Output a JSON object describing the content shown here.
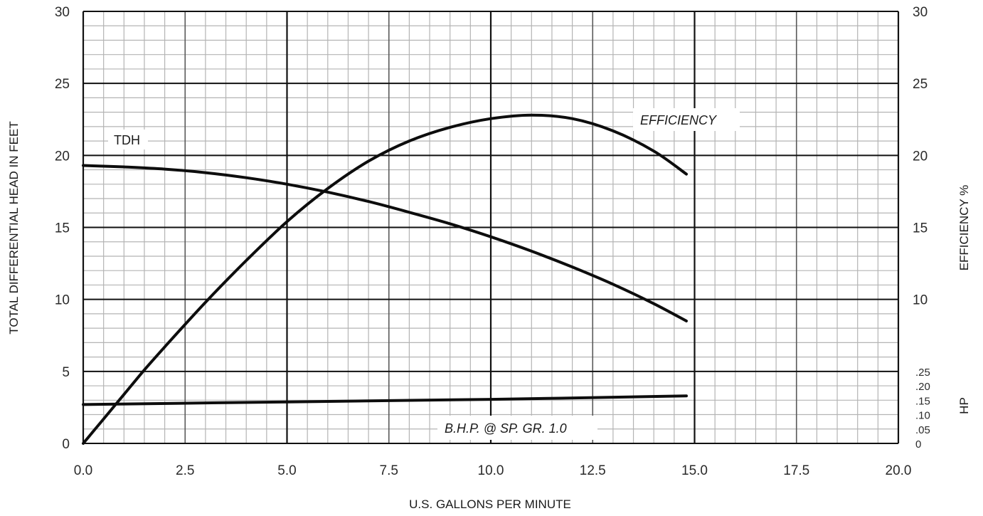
{
  "chart_data": {
    "type": "line",
    "xlabel": "U.S. GALLONS PER MINUTE",
    "ylabel": "TOTAL DIFFERENTIAL HEAD IN FEET",
    "y2label": "EFFICIENCY %",
    "y3label": "HP",
    "xlim": [
      0,
      20
    ],
    "ylim": [
      0,
      30
    ],
    "grid": true,
    "x_ticks": [
      "0.0",
      "2.5",
      "5.0",
      "7.5",
      "10.0",
      "12.5",
      "15.0",
      "17.5",
      "20.0"
    ],
    "y_ticks": [
      "0",
      "5",
      "10",
      "15",
      "20",
      "25",
      "30"
    ],
    "y2_ticks": [
      "10",
      "15",
      "20",
      "25",
      "30"
    ],
    "y3_ticks": [
      "0",
      ".05",
      ".10",
      ".15",
      ".20",
      ".25"
    ],
    "series": [
      {
        "name": "TDH",
        "axis": "head_ft",
        "x": [
          0,
          1,
          2,
          3,
          4,
          5,
          6,
          7,
          8,
          9,
          10,
          11,
          12,
          13,
          14,
          14.8
        ],
        "y": [
          19.3,
          19.2,
          19.05,
          18.8,
          18.45,
          18.0,
          17.45,
          16.8,
          16.05,
          15.25,
          14.35,
          13.35,
          12.25,
          11.05,
          9.7,
          8.5
        ]
      },
      {
        "name": "EFFICIENCY",
        "axis": "efficiency_pct",
        "x": [
          0,
          0.5,
          1,
          1.5,
          2,
          3,
          4,
          5,
          6,
          7,
          8,
          9,
          10,
          11,
          12,
          13,
          14,
          14.8
        ],
        "y": [
          0,
          1.7,
          3.4,
          5.1,
          6.7,
          9.8,
          12.7,
          15.4,
          17.7,
          19.6,
          21.0,
          21.95,
          22.55,
          22.8,
          22.55,
          21.7,
          20.3,
          18.7
        ]
      },
      {
        "name": "B.H.P. @ SP. GR. 1.0",
        "axis": "hp",
        "x": [
          0,
          5,
          10,
          14.8
        ],
        "y": [
          0.135,
          0.144,
          0.153,
          0.165
        ]
      }
    ]
  }
}
